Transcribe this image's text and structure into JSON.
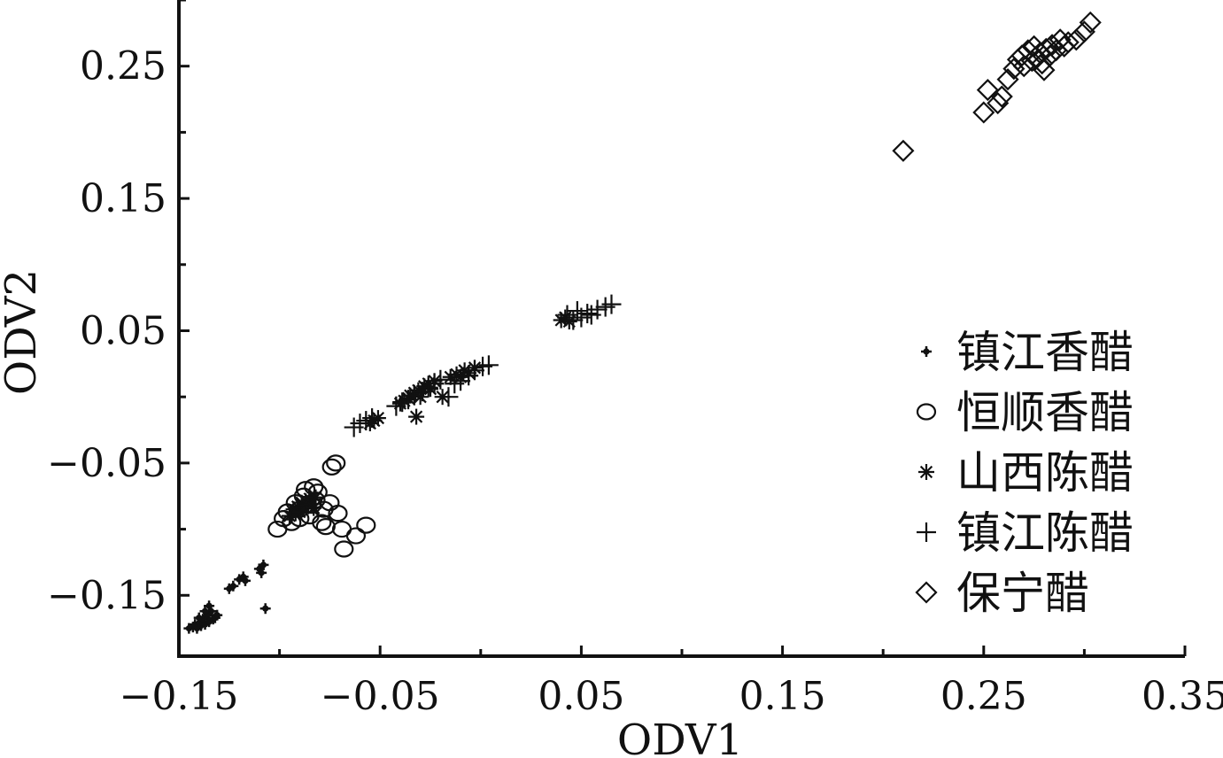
{
  "chart_data": {
    "type": "scatter",
    "title": "",
    "xlabel": "ODV1",
    "ylabel": "ODV2",
    "xlim": [
      -0.15,
      0.35
    ],
    "ylim": [
      -0.196,
      0.3
    ],
    "x_ticks": [
      -0.15,
      -0.05,
      0.05,
      0.15,
      0.25,
      0.35
    ],
    "x_tick_labels": [
      "−0.15",
      "−0.05",
      "0.05",
      "0.15",
      "0.25",
      "0.35"
    ],
    "y_ticks": [
      -0.15,
      -0.05,
      0.05,
      0.15,
      0.25
    ],
    "y_tick_labels": [
      "−0.15",
      "−0.05",
      "0.05",
      "0.15",
      "0.25"
    ],
    "grid": false,
    "legend_position": "right",
    "series": [
      {
        "name": "镇江香醋",
        "marker": "dot",
        "points": [
          [
            -0.145,
            -0.175
          ],
          [
            -0.143,
            -0.174
          ],
          [
            -0.142,
            -0.172
          ],
          [
            -0.141,
            -0.175
          ],
          [
            -0.14,
            -0.171
          ],
          [
            -0.139,
            -0.173
          ],
          [
            -0.138,
            -0.168
          ],
          [
            -0.137,
            -0.172
          ],
          [
            -0.136,
            -0.165
          ],
          [
            -0.135,
            -0.17
          ],
          [
            -0.134,
            -0.162
          ],
          [
            -0.133,
            -0.168
          ],
          [
            -0.132,
            -0.167
          ],
          [
            -0.131,
            -0.165
          ],
          [
            -0.14,
            -0.167
          ],
          [
            -0.137,
            -0.162
          ],
          [
            -0.135,
            -0.158
          ],
          [
            -0.125,
            -0.145
          ],
          [
            -0.123,
            -0.143
          ],
          [
            -0.12,
            -0.138
          ],
          [
            -0.118,
            -0.136
          ],
          [
            -0.117,
            -0.139
          ],
          [
            -0.11,
            -0.13
          ],
          [
            -0.109,
            -0.133
          ],
          [
            -0.108,
            -0.127
          ],
          [
            -0.107,
            -0.16
          ]
        ]
      },
      {
        "name": "恒顺香醋",
        "marker": "circle",
        "points": [
          [
            -0.101,
            -0.1
          ],
          [
            -0.098,
            -0.092
          ],
          [
            -0.096,
            -0.087
          ],
          [
            -0.094,
            -0.095
          ],
          [
            -0.092,
            -0.08
          ],
          [
            -0.09,
            -0.085
          ],
          [
            -0.088,
            -0.075
          ],
          [
            -0.087,
            -0.07
          ],
          [
            -0.085,
            -0.09
          ],
          [
            -0.084,
            -0.082
          ],
          [
            -0.082,
            -0.078
          ],
          [
            -0.081,
            -0.072
          ],
          [
            -0.079,
            -0.095
          ],
          [
            -0.078,
            -0.085
          ],
          [
            -0.077,
            -0.098
          ],
          [
            -0.075,
            -0.08
          ],
          [
            -0.074,
            -0.053
          ],
          [
            -0.072,
            -0.05
          ],
          [
            -0.071,
            -0.088
          ],
          [
            -0.069,
            -0.1
          ],
          [
            -0.068,
            -0.115
          ],
          [
            -0.062,
            -0.105
          ],
          [
            -0.057,
            -0.097
          ],
          [
            -0.09,
            -0.092
          ],
          [
            -0.083,
            -0.068
          ]
        ]
      },
      {
        "name": "山西陈醋",
        "marker": "asterisk",
        "points": [
          [
            -0.095,
            -0.09
          ],
          [
            -0.093,
            -0.085
          ],
          [
            -0.092,
            -0.088
          ],
          [
            -0.091,
            -0.083
          ],
          [
            -0.09,
            -0.087
          ],
          [
            -0.089,
            -0.08
          ],
          [
            -0.088,
            -0.084
          ],
          [
            -0.087,
            -0.079
          ],
          [
            -0.086,
            -0.082
          ],
          [
            -0.085,
            -0.077
          ],
          [
            -0.084,
            -0.081
          ],
          [
            -0.083,
            -0.084
          ],
          [
            -0.082,
            -0.076
          ],
          [
            -0.055,
            -0.02
          ],
          [
            -0.053,
            -0.018
          ],
          [
            -0.051,
            -0.016
          ],
          [
            -0.04,
            -0.005
          ],
          [
            -0.038,
            -0.003
          ],
          [
            -0.036,
            -0.001
          ],
          [
            -0.035,
            0.001
          ],
          [
            -0.033,
            0.003
          ],
          [
            -0.031,
            0.005
          ],
          [
            -0.03,
            0.0
          ],
          [
            -0.028,
            0.008
          ],
          [
            -0.026,
            0.01
          ],
          [
            -0.025,
            0.006
          ],
          [
            -0.023,
            0.012
          ],
          [
            -0.032,
            -0.015
          ],
          [
            -0.019,
            0.0
          ],
          [
            -0.015,
            0.015
          ],
          [
            -0.012,
            0.017
          ],
          [
            -0.01,
            0.015
          ],
          [
            -0.008,
            0.02
          ],
          [
            -0.006,
            0.018
          ],
          [
            -0.003,
            0.022
          ],
          [
            0.04,
            0.058
          ],
          [
            0.042,
            0.06
          ],
          [
            0.044,
            0.057
          ]
        ]
      },
      {
        "name": "镇江陈醋",
        "marker": "plus",
        "points": [
          [
            -0.063,
            -0.023
          ],
          [
            -0.06,
            -0.02
          ],
          [
            -0.057,
            -0.018
          ],
          [
            -0.054,
            -0.016
          ],
          [
            -0.042,
            -0.007
          ],
          [
            -0.039,
            -0.004
          ],
          [
            -0.036,
            -0.002
          ],
          [
            -0.033,
            0.001
          ],
          [
            -0.029,
            0.004
          ],
          [
            -0.026,
            0.007
          ],
          [
            -0.023,
            0.01
          ],
          [
            -0.02,
            0.013
          ],
          [
            -0.016,
            0.0
          ],
          [
            -0.013,
            0.01
          ],
          [
            -0.01,
            0.012
          ],
          [
            -0.006,
            0.016
          ],
          [
            -0.003,
            0.02
          ],
          [
            0.001,
            0.023
          ],
          [
            0.004,
            0.024
          ],
          [
            0.043,
            0.062
          ],
          [
            0.046,
            0.058
          ],
          [
            0.048,
            0.065
          ],
          [
            0.05,
            0.06
          ],
          [
            0.053,
            0.063
          ],
          [
            0.055,
            0.062
          ],
          [
            0.058,
            0.066
          ],
          [
            0.062,
            0.068
          ],
          [
            0.065,
            0.07
          ]
        ]
      },
      {
        "name": "保宁醋",
        "marker": "diamond",
        "points": [
          [
            0.21,
            0.186
          ],
          [
            0.25,
            0.215
          ],
          [
            0.252,
            0.232
          ],
          [
            0.257,
            0.222
          ],
          [
            0.259,
            0.227
          ],
          [
            0.262,
            0.24
          ],
          [
            0.265,
            0.248
          ],
          [
            0.267,
            0.255
          ],
          [
            0.269,
            0.258
          ],
          [
            0.27,
            0.25
          ],
          [
            0.272,
            0.262
          ],
          [
            0.274,
            0.254
          ],
          [
            0.276,
            0.257
          ],
          [
            0.278,
            0.26
          ],
          [
            0.279,
            0.252
          ],
          [
            0.281,
            0.263
          ],
          [
            0.283,
            0.258
          ],
          [
            0.284,
            0.266
          ],
          [
            0.286,
            0.262
          ],
          [
            0.288,
            0.27
          ],
          [
            0.29,
            0.265
          ],
          [
            0.292,
            0.268
          ],
          [
            0.296,
            0.27
          ],
          [
            0.3,
            0.276
          ],
          [
            0.303,
            0.283
          ],
          [
            0.275,
            0.265
          ],
          [
            0.28,
            0.247
          ]
        ]
      }
    ]
  }
}
